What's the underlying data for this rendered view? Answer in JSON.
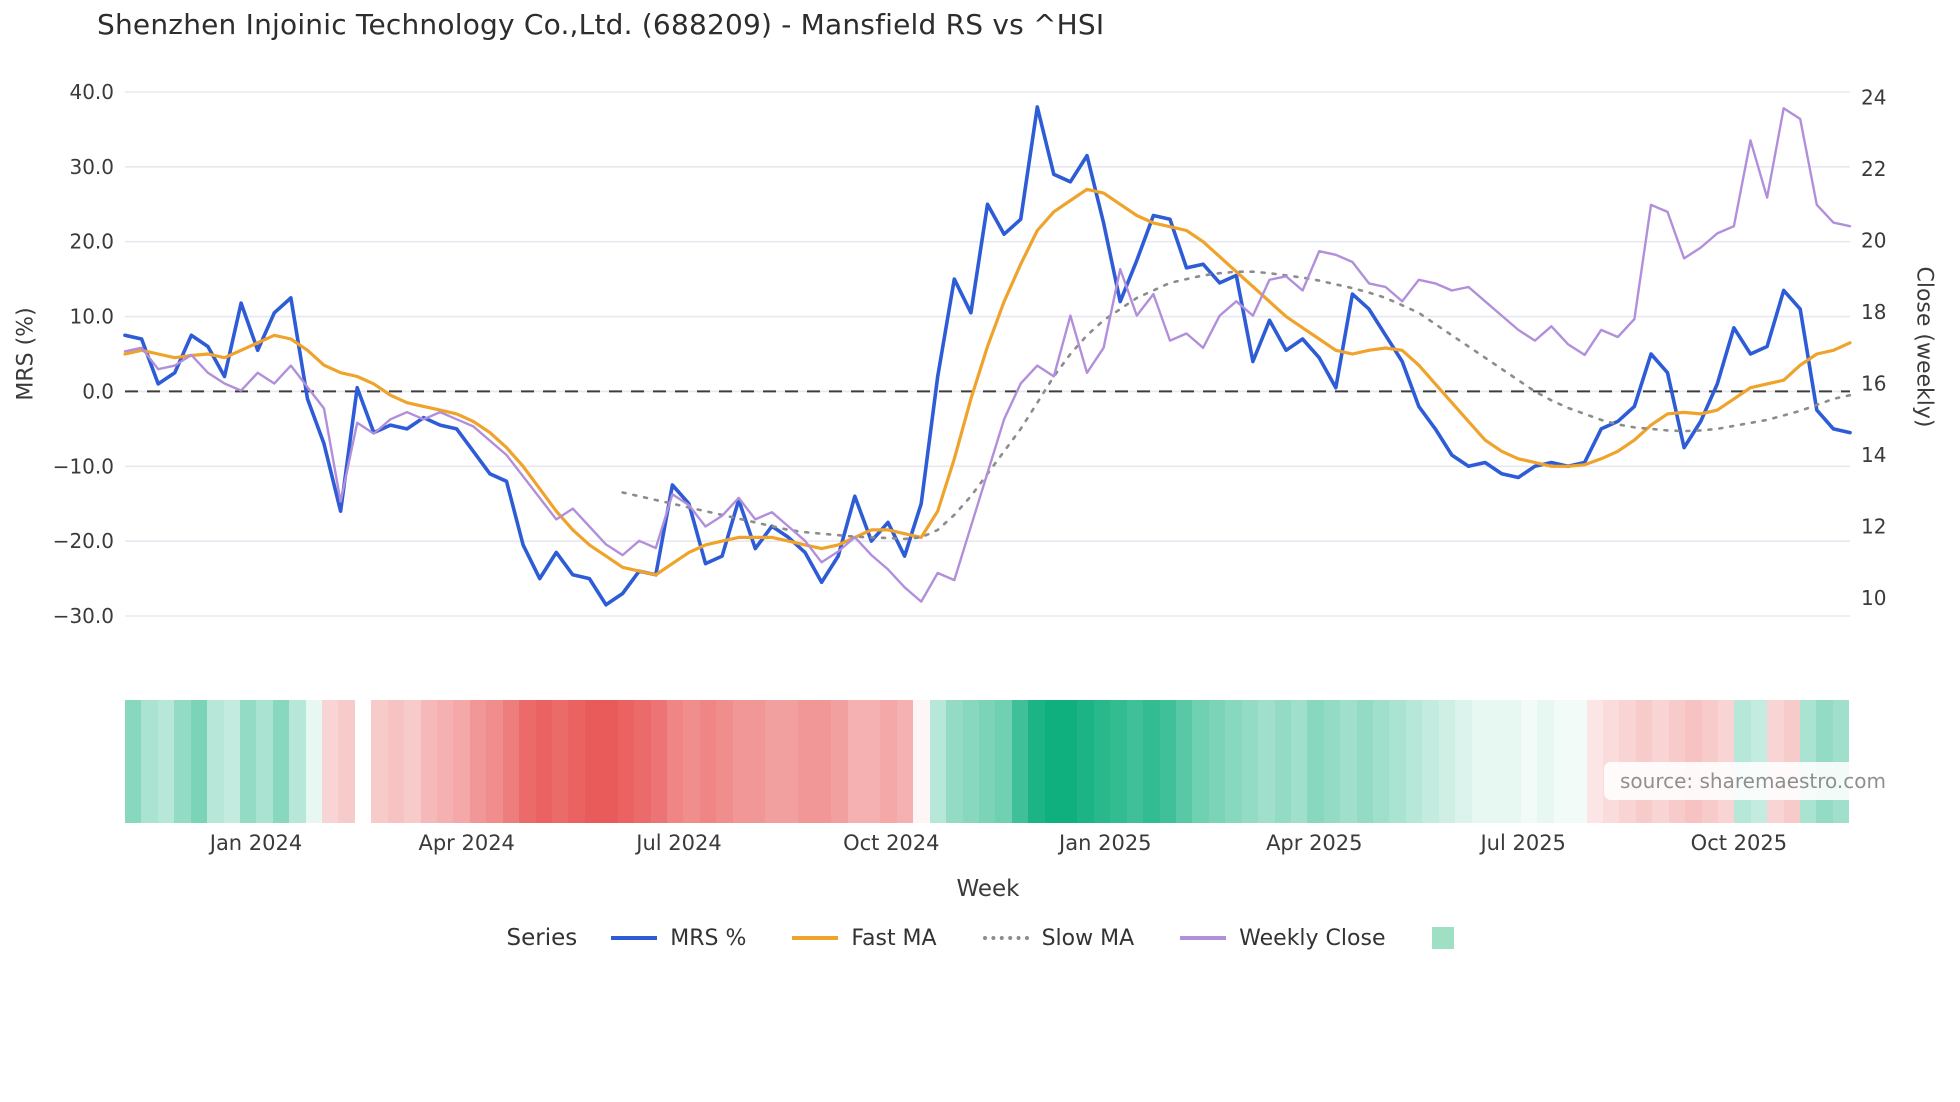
{
  "title": "Shenzhen Injoinic Technology Co.,Ltd. (688209) - Mansfield RS vs ^HSI",
  "source": "source: sharemaestro.com",
  "legend": {
    "title": "Series",
    "items": [
      {
        "label": "MRS %",
        "type": "line",
        "color": "#2e5cd6"
      },
      {
        "label": "Fast MA",
        "type": "line",
        "color": "#efa32b"
      },
      {
        "label": "Slow MA",
        "type": "line-dotted",
        "color": "#8c8c8c"
      },
      {
        "label": "Weekly Close",
        "type": "line",
        "color": "#b18fdb"
      },
      {
        "label": "",
        "type": "square",
        "color": "#9fdfc4"
      }
    ]
  },
  "chart_data": {
    "type": "line",
    "title": "Shenzhen Injoinic Technology Co.,Ltd. (688209) - Mansfield RS vs ^HSI",
    "xlabel": "Week",
    "ylabel_left": "MRS (%)",
    "ylabel_right": "Close (weekly)",
    "grid": "horizontal",
    "zero_line": true,
    "x_tick_labels": [
      "Jan 2024",
      "Apr 2024",
      "Jul 2024",
      "Oct 2024",
      "Jan 2025",
      "Apr 2025",
      "Jul 2025",
      "Oct 2025"
    ],
    "x_tick_positions": [
      7.9,
      20.6,
      33.4,
      46.2,
      59.1,
      71.7,
      84.3,
      97.3
    ],
    "left_axis": {
      "min": -30,
      "max": 40,
      "ticks": [
        40,
        30,
        20,
        10,
        0,
        -10,
        -20,
        -30
      ],
      "tick_labels": [
        "40.0",
        "30.0",
        "20.0",
        "10.0",
        "0.0",
        "−10.0",
        "−20.0",
        "−30.0"
      ]
    },
    "right_axis": {
      "min": 10,
      "max": 24,
      "ticks": [
        24,
        22,
        20,
        18,
        16,
        14,
        12,
        10
      ],
      "tick_labels": [
        "24",
        "22",
        "20",
        "18",
        "16",
        "14",
        "12",
        "10"
      ]
    },
    "series": [
      {
        "name": "MRS %",
        "axis": "left",
        "color": "#2e5cd6",
        "width": 3.6,
        "dash": null,
        "values": [
          7.5,
          7.0,
          1.0,
          2.5,
          7.5,
          6.0,
          2.0,
          11.8,
          5.5,
          10.5,
          12.5,
          -1.0,
          -7.0,
          -16.0,
          0.5,
          -5.5,
          -4.5,
          -5.0,
          -3.5,
          -4.5,
          -5.0,
          -8.0,
          -11.0,
          -12.0,
          -20.5,
          -25.0,
          -21.5,
          -24.5,
          -25.0,
          -28.5,
          -27.0,
          -24.0,
          -24.5,
          -12.5,
          -15.0,
          -23.0,
          -22.0,
          -14.5,
          -21.0,
          -18.0,
          -19.5,
          -21.5,
          -25.5,
          -22.0,
          -14.0,
          -20.0,
          -17.5,
          -22.0,
          -15.0,
          2.0,
          15.0,
          10.5,
          25.0,
          21.0,
          23.0,
          38.0,
          29.0,
          28.0,
          31.5,
          22.5,
          12.0,
          17.5,
          23.5,
          23.0,
          16.5,
          17.0,
          14.5,
          15.5,
          4.0,
          9.5,
          5.5,
          7.0,
          4.5,
          0.5,
          13.0,
          11.0,
          7.5,
          4.0,
          -2.0,
          -5.0,
          -8.5,
          -10.0,
          -9.5,
          -11.0,
          -11.5,
          -10.0,
          -9.5,
          -10.0,
          -9.5,
          -5.0,
          -4.0,
          -2.0,
          5.0,
          2.5,
          -7.5,
          -4.0,
          1.0,
          8.5,
          5.0,
          6.0,
          13.5,
          11.0,
          -2.5,
          -5.0,
          -5.5
        ]
      },
      {
        "name": "Fast MA",
        "axis": "left",
        "color": "#efa32b",
        "width": 3.2,
        "dash": null,
        "values": [
          5.0,
          5.5,
          5.0,
          4.5,
          4.8,
          5.0,
          4.5,
          5.5,
          6.5,
          7.5,
          7.0,
          5.5,
          3.5,
          2.5,
          2.0,
          1.0,
          -0.5,
          -1.5,
          -2.0,
          -2.5,
          -3.0,
          -4.0,
          -5.5,
          -7.5,
          -10.0,
          -13.0,
          -16.0,
          -18.5,
          -20.5,
          -22.0,
          -23.5,
          -24.0,
          -24.5,
          -23.0,
          -21.5,
          -20.5,
          -20.0,
          -19.5,
          -19.5,
          -19.5,
          -20.0,
          -20.5,
          -21.0,
          -20.5,
          -19.5,
          -18.5,
          -18.5,
          -19.0,
          -19.5,
          -16.0,
          -9.0,
          -1.0,
          6.0,
          12.0,
          17.0,
          21.5,
          24.0,
          25.5,
          27.0,
          26.5,
          25.0,
          23.5,
          22.5,
          22.0,
          21.5,
          20.0,
          18.0,
          16.0,
          14.0,
          12.0,
          10.0,
          8.5,
          7.0,
          5.5,
          5.0,
          5.5,
          5.8,
          5.5,
          3.5,
          1.0,
          -1.5,
          -4.0,
          -6.5,
          -8.0,
          -9.0,
          -9.5,
          -10.0,
          -10.0,
          -9.8,
          -9.0,
          -8.0,
          -6.5,
          -4.5,
          -3.0,
          -2.8,
          -3.0,
          -2.5,
          -1.0,
          0.5,
          1.0,
          1.5,
          3.5,
          5.0,
          5.5,
          6.5
        ]
      },
      {
        "name": "Slow MA",
        "axis": "left",
        "color": "#8c8c8c",
        "width": 2.6,
        "dash": "dotted",
        "values": [
          null,
          null,
          null,
          null,
          null,
          null,
          null,
          null,
          null,
          null,
          null,
          null,
          null,
          null,
          null,
          null,
          null,
          null,
          null,
          null,
          null,
          null,
          null,
          null,
          null,
          null,
          null,
          null,
          null,
          null,
          -13.5,
          -14.0,
          -14.5,
          -15.0,
          -15.5,
          -16.0,
          -16.5,
          -17.0,
          -17.5,
          -18.0,
          -18.5,
          -18.8,
          -19.0,
          -19.2,
          -19.4,
          -19.5,
          -19.6,
          -19.7,
          -19.5,
          -18.5,
          -16.5,
          -14.0,
          -11.0,
          -8.0,
          -5.0,
          -1.5,
          2.0,
          5.0,
          7.5,
          9.5,
          11.0,
          12.5,
          13.5,
          14.5,
          15.0,
          15.5,
          15.8,
          16.0,
          16.0,
          15.8,
          15.5,
          15.2,
          14.8,
          14.3,
          13.8,
          13.2,
          12.5,
          11.5,
          10.5,
          9.0,
          7.5,
          6.0,
          4.5,
          3.0,
          1.5,
          0.0,
          -1.2,
          -2.2,
          -3.0,
          -3.8,
          -4.4,
          -4.8,
          -5.0,
          -5.2,
          -5.3,
          -5.2,
          -5.0,
          -4.6,
          -4.2,
          -3.8,
          -3.2,
          -2.6,
          -1.8,
          -1.0,
          -0.5
        ]
      },
      {
        "name": "Weekly Close",
        "axis": "right",
        "color": "#b18fdb",
        "width": 2.4,
        "dash": null,
        "values": [
          16.9,
          17.0,
          16.4,
          16.5,
          16.8,
          16.3,
          16.0,
          15.8,
          16.3,
          16.0,
          16.5,
          15.9,
          15.3,
          12.7,
          14.9,
          14.6,
          15.0,
          15.2,
          15.0,
          15.2,
          15.0,
          14.8,
          14.4,
          14.0,
          13.4,
          12.8,
          12.2,
          12.5,
          12.0,
          11.5,
          11.2,
          11.6,
          11.4,
          12.9,
          12.6,
          12.0,
          12.3,
          12.8,
          12.2,
          12.4,
          12.0,
          11.6,
          11.0,
          11.3,
          11.7,
          11.2,
          10.8,
          10.3,
          9.9,
          10.7,
          10.5,
          12.0,
          13.5,
          15.0,
          16.0,
          16.5,
          16.2,
          17.9,
          16.3,
          17.0,
          19.2,
          17.9,
          18.5,
          17.2,
          17.4,
          17.0,
          17.9,
          18.3,
          17.9,
          18.9,
          19.0,
          18.6,
          19.7,
          19.6,
          19.4,
          18.8,
          18.7,
          18.3,
          18.9,
          18.8,
          18.6,
          18.7,
          18.3,
          17.9,
          17.5,
          17.2,
          17.6,
          17.1,
          16.8,
          17.5,
          17.3,
          17.8,
          21.0,
          20.8,
          19.5,
          19.8,
          20.2,
          20.4,
          22.8,
          21.2,
          23.7,
          23.4,
          21.0,
          20.5,
          20.4
        ]
      }
    ],
    "heatmap": {
      "positive_color": "#10b07e",
      "negative_color": "#e85151",
      "values": [
        0.5,
        0.35,
        0.3,
        0.45,
        0.55,
        0.3,
        0.25,
        0.45,
        0.35,
        0.5,
        0.3,
        0.1,
        -0.25,
        -0.3,
        0.0,
        -0.3,
        -0.35,
        -0.3,
        -0.4,
        -0.45,
        -0.5,
        -0.6,
        -0.65,
        -0.75,
        -0.85,
        -0.9,
        -0.85,
        -0.9,
        -0.95,
        -0.95,
        -0.9,
        -0.85,
        -0.8,
        -0.7,
        -0.65,
        -0.7,
        -0.65,
        -0.6,
        -0.6,
        -0.55,
        -0.55,
        -0.6,
        -0.6,
        -0.55,
        -0.45,
        -0.45,
        -0.5,
        -0.45,
        -0.05,
        0.3,
        0.45,
        0.5,
        0.55,
        0.6,
        0.8,
        0.95,
        1.0,
        1.0,
        0.95,
        0.9,
        0.85,
        0.8,
        0.85,
        0.8,
        0.7,
        0.6,
        0.55,
        0.5,
        0.45,
        0.4,
        0.45,
        0.4,
        0.5,
        0.45,
        0.4,
        0.45,
        0.4,
        0.35,
        0.3,
        0.25,
        0.2,
        0.15,
        0.1,
        0.1,
        0.1,
        0.05,
        0.1,
        0.05,
        0.05,
        -0.15,
        -0.2,
        -0.25,
        -0.3,
        -0.25,
        -0.3,
        -0.35,
        -0.3,
        -0.25,
        0.3,
        0.25,
        -0.25,
        -0.3,
        0.35,
        0.45,
        0.4
      ]
    }
  }
}
